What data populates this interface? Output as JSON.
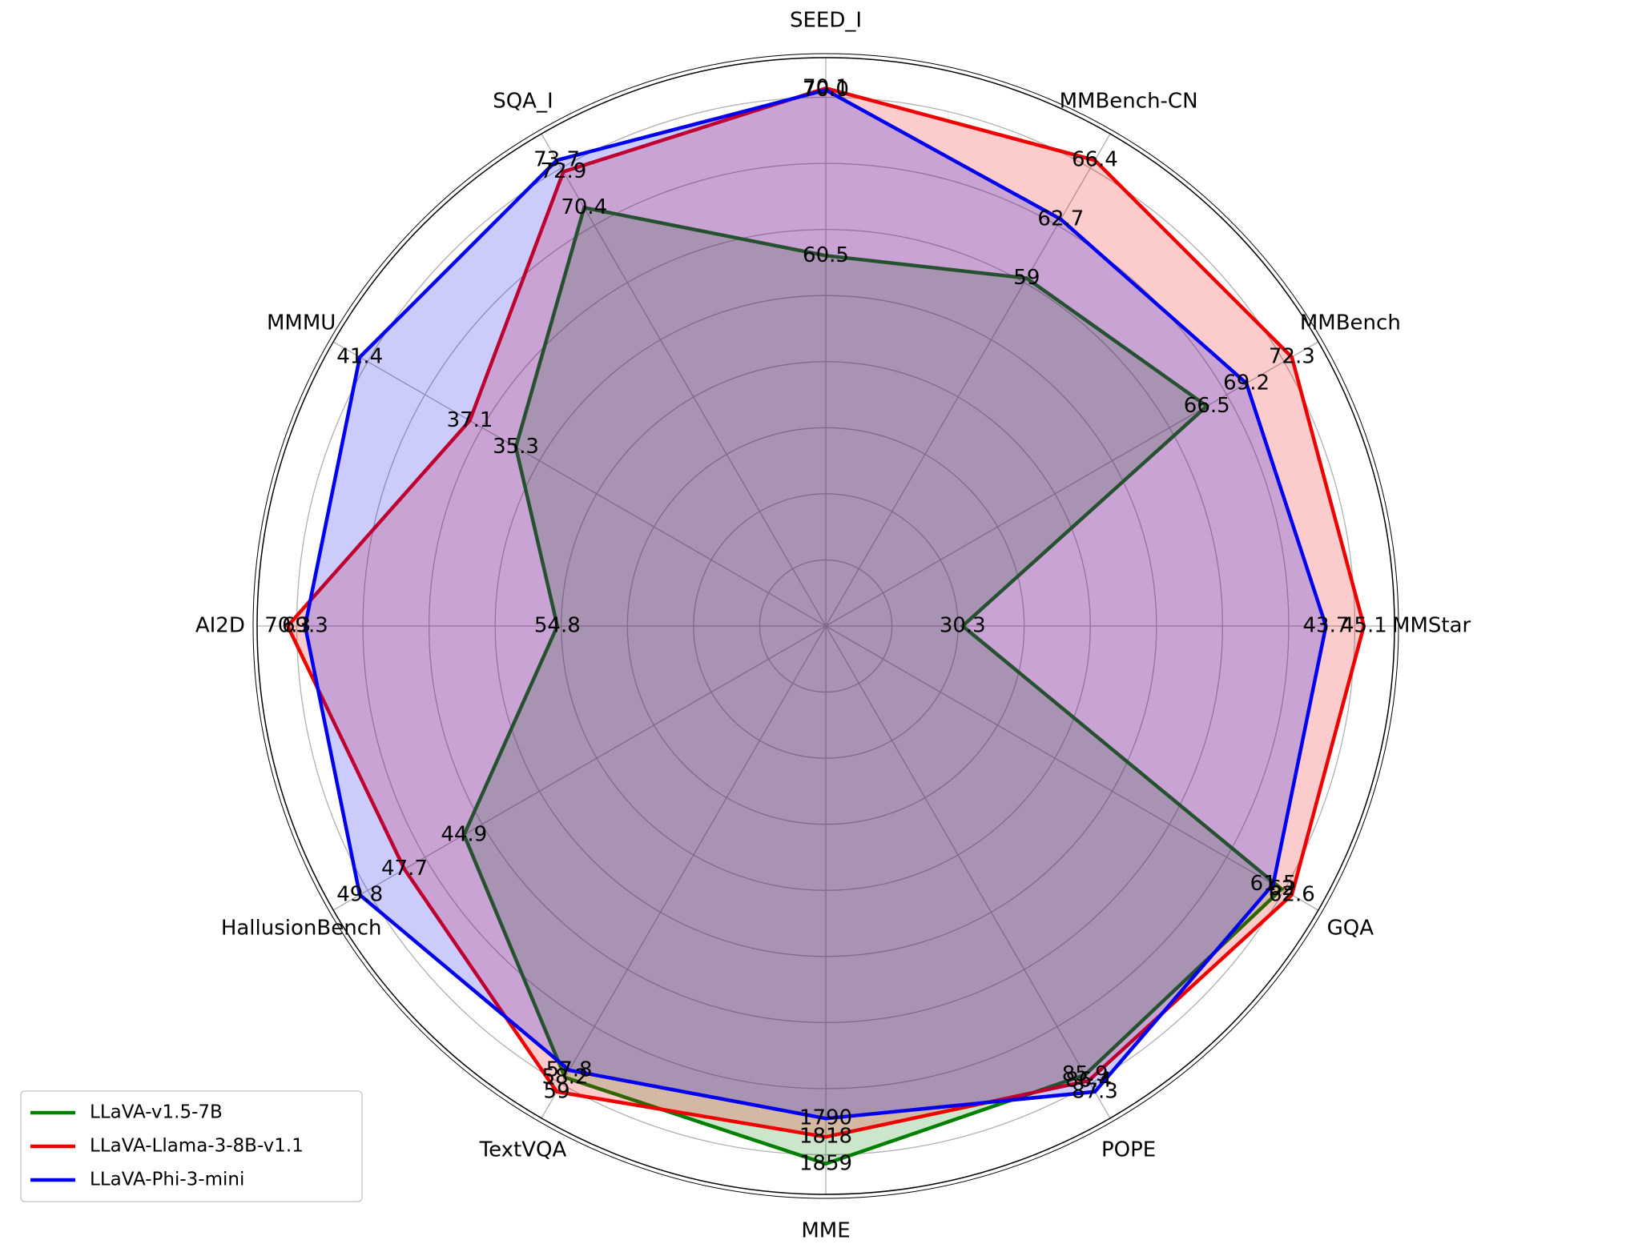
{
  "chart_data": {
    "type": "radar",
    "categories": [
      "SEED_I",
      "MMBench-CN",
      "MMBench",
      "MMStar",
      "GQA",
      "POPE",
      "MME",
      "TextVQA",
      "HallusionBench",
      "AI2D",
      "MMMU",
      "SQA_I"
    ],
    "series": [
      {
        "name": "LLaVA-v1.5-7B",
        "color": "#008000",
        "values": [
          60.5,
          59,
          66.5,
          30.3,
          62,
          85.9,
          1859,
          58.2,
          44.9,
          54.8,
          35.3,
          70.4
        ]
      },
      {
        "name": "LLaVA-Llama-3-8B-v1.1",
        "color": "#ee0000",
        "values": [
          70.1,
          66.4,
          72.3,
          45.1,
          62.6,
          86.4,
          1818,
          59,
          47.7,
          70.3,
          37.1,
          72.9
        ]
      },
      {
        "name": "LLaVA-Phi-3-mini",
        "color": "#0000ee",
        "values": [
          70.0,
          62.7,
          69.2,
          43.7,
          61.5,
          87.3,
          1790,
          57.8,
          49.8,
          69.3,
          41.4,
          73.7
        ],
        "value_labels": [
          "70.0",
          "62.7",
          "69.2",
          "43.7",
          "61.5",
          "87.3",
          "1790",
          "57.8",
          "49.8",
          "69.3",
          "41.4",
          "73.7"
        ]
      }
    ],
    "rlim": [
      0.56,
      1.025
    ],
    "legend": "lower left"
  }
}
